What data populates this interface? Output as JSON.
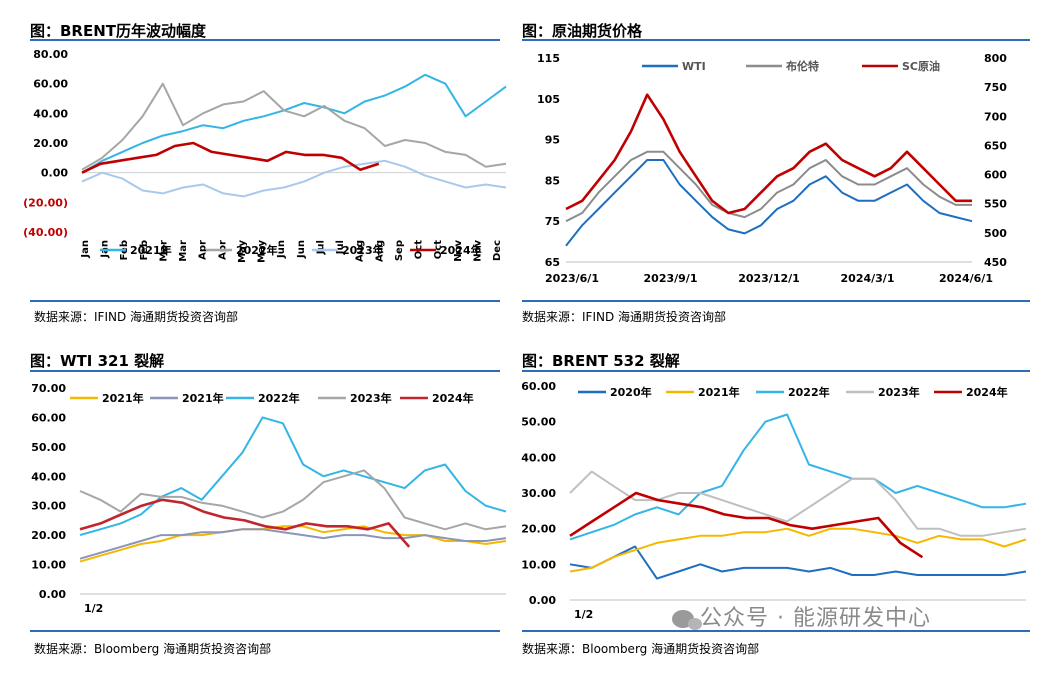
{
  "panels": [
    {
      "title": "图：BRENT历年波动幅度",
      "source": "数据来源：IFIND   海通期货投资咨询部"
    },
    {
      "title": "图：原油期货价格",
      "source": "数据来源：IFIND   海通期货投资咨询部"
    },
    {
      "title": "图：WTI 321 裂解",
      "source": "数据来源：Bloomberg   海通期货投资咨询部"
    },
    {
      "title": "图：BRENT 532 裂解",
      "source": "数据来源：Bloomberg   海通期货投资咨询部"
    }
  ],
  "watermark": "公众号 · 能源研发中心",
  "chart_data": [
    {
      "type": "line",
      "x_ticks": [
        "Jan",
        "Jan",
        "Feb",
        "Feb",
        "Mar",
        "Mar",
        "Apr",
        "Apr",
        "May",
        "May",
        "Jun",
        "Jun",
        "Jul",
        "Jul",
        "Aug",
        "Aug",
        "Sep",
        "Oct",
        "Oct",
        "Nov",
        "Nov",
        "Dec"
      ],
      "y_ticks": [
        "80.00",
        "60.00",
        "40.00",
        "20.00",
        "0.00",
        "(20.00)",
        "(40.00)"
      ],
      "ylim": [
        -40,
        80
      ],
      "series": [
        {
          "name": "2021年",
          "color": "#33b5e5",
          "values": [
            0,
            8,
            14,
            20,
            25,
            28,
            32,
            30,
            35,
            38,
            42,
            47,
            44,
            40,
            48,
            52,
            58,
            66,
            60,
            38,
            48,
            58
          ],
          "x_end": 1.0
        },
        {
          "name": "2022年",
          "color": "#a6a6a6",
          "values": [
            2,
            10,
            22,
            38,
            60,
            32,
            40,
            46,
            48,
            55,
            42,
            38,
            45,
            35,
            30,
            18,
            22,
            20,
            14,
            12,
            4,
            6
          ],
          "x_end": 1.0
        },
        {
          "name": "2023年",
          "color": "#a9c9ec",
          "values": [
            -6,
            0,
            -4,
            -12,
            -14,
            -10,
            -8,
            -14,
            -16,
            -12,
            -10,
            -6,
            0,
            4,
            6,
            8,
            4,
            -2,
            -6,
            -10,
            -8,
            -10
          ],
          "x_end": 1.0
        },
        {
          "name": "2024年",
          "color": "#c00000",
          "values": [
            0,
            6,
            8,
            10,
            12,
            18,
            20,
            14,
            12,
            10,
            8,
            14,
            12,
            12,
            10,
            2,
            6
          ],
          "x_end": 0.7
        }
      ]
    },
    {
      "type": "line",
      "x_ticks": [
        "2023/6/1",
        "2023/9/1",
        "2023/12/1",
        "2024/3/1",
        "2024/6/1"
      ],
      "y_ticks": [
        "115",
        "105",
        "95",
        "85",
        "75",
        "65"
      ],
      "y2_ticks": [
        "800",
        "750",
        "700",
        "650",
        "600",
        "550",
        "500",
        "450"
      ],
      "ylim": [
        65,
        115
      ],
      "y2lim": [
        450,
        800
      ],
      "series": [
        {
          "name": "WTI",
          "color": "#1f6fc0",
          "values": [
            69,
            74,
            78,
            82,
            86,
            90,
            90,
            84,
            80,
            76,
            73,
            72,
            74,
            78,
            80,
            84,
            86,
            82,
            80,
            80,
            82,
            84,
            80,
            77,
            76,
            75
          ]
        },
        {
          "name": "布伦特",
          "color": "#8c8c8c",
          "values": [
            75,
            77,
            82,
            86,
            90,
            92,
            92,
            88,
            84,
            79,
            77,
            76,
            78,
            82,
            84,
            88,
            90,
            86,
            84,
            84,
            86,
            88,
            84,
            81,
            79,
            79
          ]
        },
        {
          "name": "SC原油",
          "color": "#c00000",
          "values": [
            78,
            80,
            85,
            90,
            97,
            106,
            100,
            92,
            86,
            80,
            77,
            78,
            82,
            86,
            88,
            92,
            94,
            90,
            88,
            86,
            88,
            92,
            88,
            84,
            80,
            80
          ]
        }
      ]
    },
    {
      "type": "line",
      "x_ticks": [
        "1/2"
      ],
      "y_ticks": [
        "70.00",
        "60.00",
        "50.00",
        "40.00",
        "30.00",
        "20.00",
        "10.00",
        "0.00"
      ],
      "ylim": [
        0,
        70
      ],
      "series": [
        {
          "name": "2021年",
          "color": "#f5b800",
          "values": [
            11,
            13,
            15,
            17,
            18,
            20,
            20,
            21,
            22,
            22,
            23,
            23,
            21,
            22,
            23,
            21,
            20,
            20,
            18,
            18,
            17,
            18
          ]
        },
        {
          "name": "2021年",
          "color": "#8c95b8",
          "values": [
            12,
            14,
            16,
            18,
            20,
            20,
            21,
            21,
            22,
            22,
            21,
            20,
            19,
            20,
            20,
            19,
            19,
            20,
            19,
            18,
            18,
            19
          ]
        },
        {
          "name": "2022年",
          "color": "#33b5e5",
          "values": [
            20,
            22,
            24,
            27,
            33,
            36,
            32,
            40,
            48,
            60,
            58,
            44,
            40,
            42,
            40,
            38,
            36,
            42,
            44,
            35,
            30,
            28
          ]
        },
        {
          "name": "2023年",
          "color": "#a6a6a6",
          "values": [
            35,
            32,
            28,
            34,
            33,
            33,
            31,
            30,
            28,
            26,
            28,
            32,
            38,
            40,
            42,
            36,
            26,
            24,
            22,
            24,
            22,
            23
          ]
        },
        {
          "name": "2024年",
          "color": "#c0262d",
          "values": [
            22,
            24,
            27,
            30,
            32,
            31,
            28,
            26,
            25,
            23,
            22,
            24,
            23,
            23,
            22,
            24,
            16
          ]
        }
      ]
    },
    {
      "type": "line",
      "x_ticks": [
        "1/2"
      ],
      "y_ticks": [
        "60.00",
        "50.00",
        "40.00",
        "30.00",
        "20.00",
        "10.00",
        "0.00"
      ],
      "ylim": [
        0,
        60
      ],
      "series": [
        {
          "name": "2020年",
          "color": "#1f6fc0",
          "values": [
            10,
            9,
            12,
            15,
            6,
            8,
            10,
            8,
            9,
            9,
            9,
            8,
            9,
            7,
            7,
            8,
            7,
            7,
            7,
            7,
            7,
            8
          ]
        },
        {
          "name": "2021年",
          "color": "#f5b800",
          "values": [
            8,
            9,
            12,
            14,
            16,
            17,
            18,
            18,
            19,
            19,
            20,
            18,
            20,
            20,
            19,
            18,
            16,
            18,
            17,
            17,
            15,
            17
          ]
        },
        {
          "name": "2022年",
          "color": "#33b5e5",
          "values": [
            17,
            19,
            21,
            24,
            26,
            24,
            30,
            32,
            42,
            50,
            52,
            38,
            36,
            34,
            34,
            30,
            32,
            30,
            28,
            26,
            26,
            27
          ]
        },
        {
          "name": "2023年",
          "color": "#bfbfbf",
          "values": [
            30,
            36,
            32,
            28,
            28,
            30,
            30,
            28,
            26,
            24,
            22,
            26,
            30,
            34,
            34,
            28,
            20,
            20,
            18,
            18,
            19,
            20
          ]
        },
        {
          "name": "2024年",
          "color": "#c00000",
          "values": [
            18,
            22,
            26,
            30,
            28,
            27,
            26,
            24,
            23,
            23,
            21,
            20,
            21,
            22,
            23,
            16,
            12
          ]
        }
      ]
    }
  ]
}
